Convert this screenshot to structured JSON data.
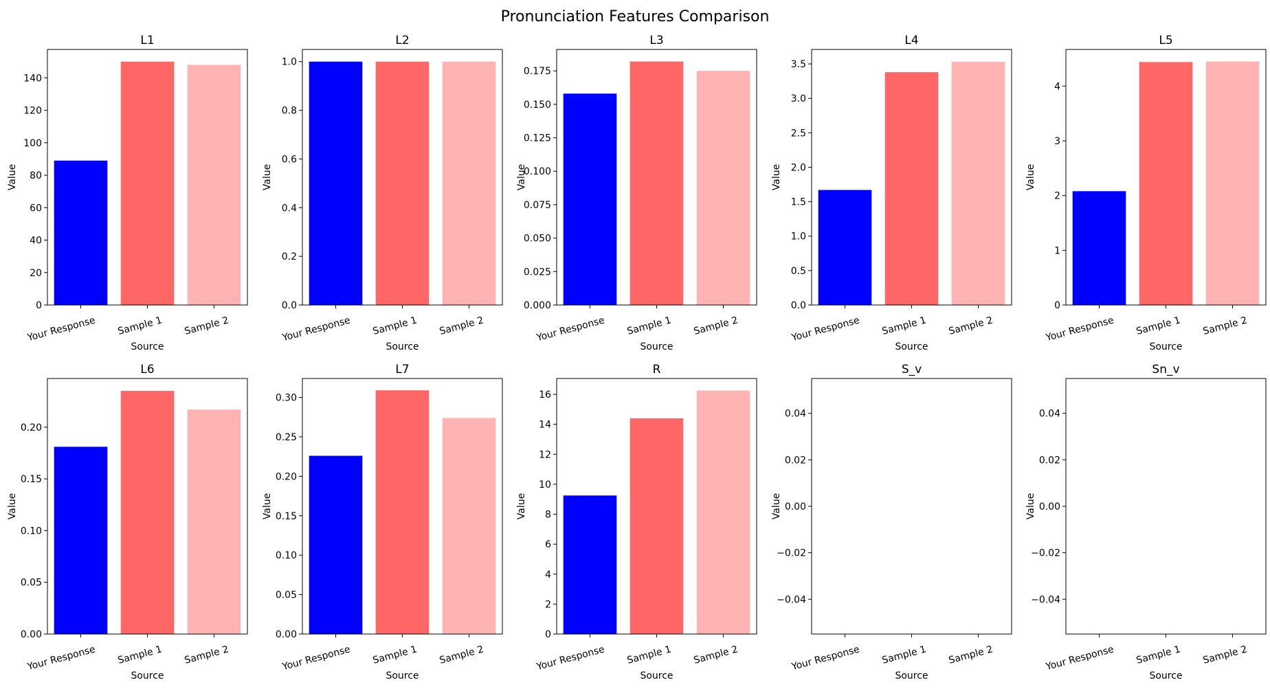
{
  "figure": {
    "title": "Pronunciation Features Comparison"
  },
  "chart_data": [
    {
      "type": "bar",
      "title": "L1",
      "xlabel": "Source",
      "ylabel": "Value",
      "categories": [
        "Your Response",
        "Sample 1",
        "Sample 2"
      ],
      "values": [
        89,
        150,
        148
      ],
      "colors": [
        "#0000ff",
        "#ff6666",
        "#ffb3b3"
      ],
      "ylim": [
        0,
        157.5
      ],
      "yticks": [
        "0",
        "20",
        "40",
        "60",
        "80",
        "100",
        "120",
        "140"
      ],
      "ytick_values": [
        0,
        20,
        40,
        60,
        80,
        100,
        120,
        140
      ]
    },
    {
      "type": "bar",
      "title": "L2",
      "xlabel": "Source",
      "ylabel": "Value",
      "categories": [
        "Your Response",
        "Sample 1",
        "Sample 2"
      ],
      "values": [
        1.0,
        1.0,
        1.0
      ],
      "colors": [
        "#0000ff",
        "#ff6666",
        "#ffb3b3"
      ],
      "ylim": [
        0,
        1.05
      ],
      "yticks": [
        "0.0",
        "0.2",
        "0.4",
        "0.6",
        "0.8",
        "1.0"
      ],
      "ytick_values": [
        0,
        0.2,
        0.4,
        0.6,
        0.8,
        1.0
      ]
    },
    {
      "type": "bar",
      "title": "L3",
      "xlabel": "Source",
      "ylabel": "Value",
      "categories": [
        "Your Response",
        "Sample 1",
        "Sample 2"
      ],
      "values": [
        0.158,
        0.182,
        0.175
      ],
      "colors": [
        "#0000ff",
        "#ff6666",
        "#ffb3b3"
      ],
      "ylim": [
        0,
        0.191
      ],
      "yticks": [
        "0.000",
        "0.025",
        "0.050",
        "0.075",
        "0.100",
        "0.125",
        "0.150",
        "0.175"
      ],
      "ytick_values": [
        0,
        0.025,
        0.05,
        0.075,
        0.1,
        0.125,
        0.15,
        0.175
      ]
    },
    {
      "type": "bar",
      "title": "L4",
      "xlabel": "Source",
      "ylabel": "Value",
      "categories": [
        "Your Response",
        "Sample 1",
        "Sample 2"
      ],
      "values": [
        1.67,
        3.38,
        3.53
      ],
      "colors": [
        "#0000ff",
        "#ff6666",
        "#ffb3b3"
      ],
      "ylim": [
        0,
        3.71
      ],
      "yticks": [
        "0.0",
        "0.5",
        "1.0",
        "1.5",
        "2.0",
        "2.5",
        "3.0",
        "3.5"
      ],
      "ytick_values": [
        0,
        0.5,
        1.0,
        1.5,
        2.0,
        2.5,
        3.0,
        3.5
      ]
    },
    {
      "type": "bar",
      "title": "L5",
      "xlabel": "Source",
      "ylabel": "Value",
      "categories": [
        "Your Response",
        "Sample 1",
        "Sample 2"
      ],
      "values": [
        2.08,
        4.44,
        4.45
      ],
      "colors": [
        "#0000ff",
        "#ff6666",
        "#ffb3b3"
      ],
      "ylim": [
        0,
        4.67
      ],
      "yticks": [
        "0",
        "1",
        "2",
        "3",
        "4"
      ],
      "ytick_values": [
        0,
        1,
        2,
        3,
        4
      ]
    },
    {
      "type": "bar",
      "title": "L6",
      "xlabel": "Source",
      "ylabel": "Value",
      "categories": [
        "Your Response",
        "Sample 1",
        "Sample 2"
      ],
      "values": [
        0.181,
        0.235,
        0.217
      ],
      "colors": [
        "#0000ff",
        "#ff6666",
        "#ffb3b3"
      ],
      "ylim": [
        0,
        0.247
      ],
      "yticks": [
        "0.00",
        "0.05",
        "0.10",
        "0.15",
        "0.20"
      ],
      "ytick_values": [
        0,
        0.05,
        0.1,
        0.15,
        0.2
      ]
    },
    {
      "type": "bar",
      "title": "L7",
      "xlabel": "Source",
      "ylabel": "Value",
      "categories": [
        "Your Response",
        "Sample 1",
        "Sample 2"
      ],
      "values": [
        0.226,
        0.309,
        0.274
      ],
      "colors": [
        "#0000ff",
        "#ff6666",
        "#ffb3b3"
      ],
      "ylim": [
        0,
        0.324
      ],
      "yticks": [
        "0.00",
        "0.05",
        "0.10",
        "0.15",
        "0.20",
        "0.25",
        "0.30"
      ],
      "ytick_values": [
        0,
        0.05,
        0.1,
        0.15,
        0.2,
        0.25,
        0.3
      ]
    },
    {
      "type": "bar",
      "title": "R",
      "xlabel": "Source",
      "ylabel": "Value",
      "categories": [
        "Your Response",
        "Sample 1",
        "Sample 2"
      ],
      "values": [
        9.25,
        14.4,
        16.25
      ],
      "colors": [
        "#0000ff",
        "#ff6666",
        "#ffb3b3"
      ],
      "ylim": [
        0,
        17.06
      ],
      "yticks": [
        "0",
        "2",
        "4",
        "6",
        "8",
        "10",
        "12",
        "14",
        "16"
      ],
      "ytick_values": [
        0,
        2,
        4,
        6,
        8,
        10,
        12,
        14,
        16
      ]
    },
    {
      "type": "bar",
      "title": "S_v",
      "xlabel": "Source",
      "ylabel": "Value",
      "categories": [
        "Your Response",
        "Sample 1",
        "Sample 2"
      ],
      "values": [
        0,
        0,
        0
      ],
      "colors": [
        "#0000ff",
        "#ff6666",
        "#ffb3b3"
      ],
      "ylim": [
        -0.055,
        0.055
      ],
      "yticks": [
        "−0.04",
        "−0.02",
        "0.00",
        "0.02",
        "0.04"
      ],
      "ytick_values": [
        -0.04,
        -0.02,
        0,
        0.02,
        0.04
      ]
    },
    {
      "type": "bar",
      "title": "Sn_v",
      "xlabel": "Source",
      "ylabel": "Value",
      "categories": [
        "Your Response",
        "Sample 1",
        "Sample 2"
      ],
      "values": [
        0,
        0,
        0
      ],
      "colors": [
        "#0000ff",
        "#ff6666",
        "#ffb3b3"
      ],
      "ylim": [
        -0.055,
        0.055
      ],
      "yticks": [
        "−0.04",
        "−0.02",
        "0.00",
        "0.02",
        "0.04"
      ],
      "ytick_values": [
        -0.04,
        -0.02,
        0,
        0.02,
        0.04
      ]
    }
  ]
}
